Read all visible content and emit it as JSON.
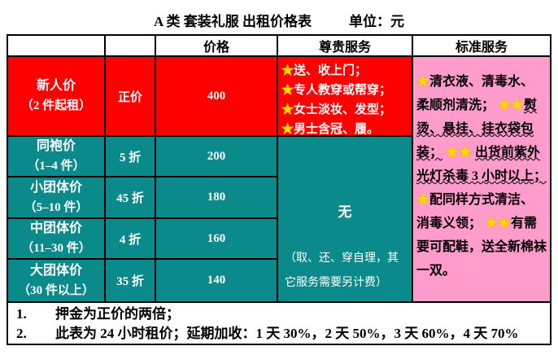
{
  "page": {
    "title": "A 类 套装礼服 出租价格表",
    "unit_label": "单位：元"
  },
  "table": {
    "headers": {
      "price": "价格",
      "premium": "尊贵服务",
      "standard": "标准服务"
    },
    "rows": [
      {
        "name": "新人价",
        "qty": "（2 件起租）",
        "discount": "正价",
        "price": "400"
      },
      {
        "name": "同袍价",
        "qty": "（1–4 件）",
        "discount": "5 折",
        "price": "200"
      },
      {
        "name": "小团体价",
        "qty": "（5–10 件）",
        "discount": "45 折",
        "price": "180"
      },
      {
        "name": "中团体价",
        "qty": "（11–30 件）",
        "discount": "4 折",
        "price": "160"
      },
      {
        "name": "大团体价",
        "qty": "（30 件以上）",
        "discount": "35 折",
        "price": "140"
      }
    ],
    "premium_vip": {
      "items": [
        {
          "star": "★",
          "text": "送、收上门；"
        },
        {
          "star": "★",
          "text": "专人教穿或帮穿；"
        },
        {
          "star": "★",
          "text": "女士淡妆、发型；"
        },
        {
          "star": "★",
          "text": "男士含冠、履。"
        }
      ]
    },
    "premium_group": {
      "none_label": "无",
      "note": "（取、还、穿自理，其它服务需要另计费）"
    },
    "standard": {
      "items": [
        {
          "stars": "★",
          "text": "清衣液、清毒水、柔顺剂清洗；",
          "wavy": false
        },
        {
          "stars": "★★",
          "text": "熨烫、悬挂、挂衣袋包装；",
          "wavy": true
        },
        {
          "stars": "★★ ",
          "text": "出货前紫外光灯杀毒 3 小时以上；",
          "wavy": true
        },
        {
          "stars": "★",
          "text": "配同样方式清洁、消毒义领；",
          "wavy": false
        },
        {
          "stars": "★★",
          "text": "有需要可配鞋，送全新棉袜一双。",
          "wavy": false
        }
      ]
    }
  },
  "notes": [
    {
      "num": "1.",
      "text": "押金为正价的两倍；"
    },
    {
      "num": "2.",
      "text": "此表为 24 小时租价；延期加收：1 天 30%，2 天 50%，3 天 60%，4 天 70%"
    }
  ],
  "colors": {
    "vip_bg": "#ff0000",
    "group_bg": "#0a8a8a",
    "standard_bg": "#ff9ccc",
    "star": "#ffd700",
    "border": "#000000"
  }
}
